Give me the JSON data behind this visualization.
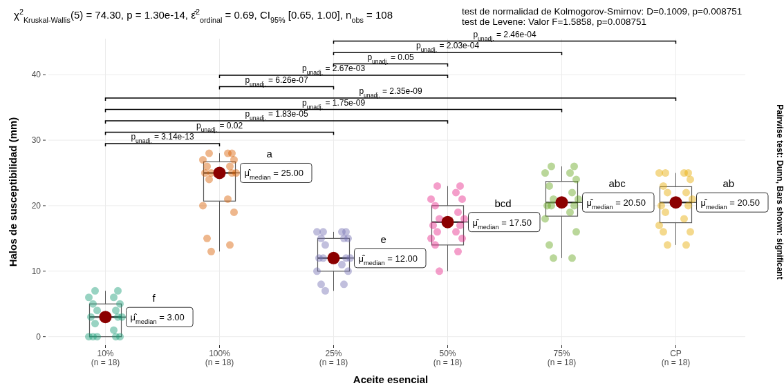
{
  "chart_data": {
    "type": "box",
    "title": "χ$^{2}$$_{Kruskal-Wallis}$(5) = 74.30, p = 1.30e-14, ε̂$^{2}$$_{ordinal}$ = 0.69, CI$_{95%}$ [0.65, 1.00], n$_{obs}$ = 108",
    "subtitle": "test de normalidad de Kolmogorov-Smirnov: D=0.1009, p=0.008751\ntest de Levene: Valor F=1.5858, p=0.008751",
    "xlabel": "Aceite esencial",
    "ylabel": "Halos de susceptibilidad (mm)",
    "categories": [
      "10%\n(n = 18)",
      "100%\n(n = 18)",
      "25%\n(n = 18)",
      "50%\n(n = 18)",
      "75%\n(n = 18)",
      "CP\n(n = 18)"
    ],
    "ylim": [
      -1.3,
      45.5
    ],
    "yticks": [
      0,
      10,
      20,
      30,
      40
    ],
    "grid": true,
    "color": "#595959",
    "boxes": [
      {
        "low": 0,
        "q1": 0,
        "median": 3,
        "q3": 5,
        "high": 7
      },
      {
        "low": 13,
        "q1": 20.7,
        "median": 25,
        "q3": 26.7,
        "high": 28
      },
      {
        "low": 7,
        "q1": 10,
        "median": 12,
        "q3": 15,
        "high": 16
      },
      {
        "low": 10,
        "q1": 14,
        "median": 17.5,
        "q3": 20,
        "high": 23
      },
      {
        "low": 12,
        "q1": 18.4,
        "median": 20.5,
        "q3": 23.7,
        "high": 26
      },
      {
        "low": 14,
        "q1": 17.4,
        "median": 20.5,
        "q3": 22.9,
        "high": 25
      }
    ],
    "series": [
      {
        "type": "scatter",
        "color": "#1b9e77",
        "x": [
          "10%\n(n = 18)",
          "10%\n(n = 18)",
          "10%\n(n = 18)",
          "10%\n(n = 18)",
          "10%\n(n = 18)",
          "10%\n(n = 18)",
          "10%\n(n = 18)",
          "10%\n(n = 18)",
          "10%\n(n = 18)",
          "10%\n(n = 18)",
          "10%\n(n = 18)",
          "10%\n(n = 18)",
          "10%\n(n = 18)",
          "10%\n(n = 18)",
          "10%\n(n = 18)",
          "10%\n(n = 18)",
          "10%\n(n = 18)",
          "10%\n(n = 18)"
        ],
        "values": [
          0,
          0,
          0,
          0,
          0,
          1,
          2,
          3,
          3,
          3,
          4,
          4,
          5,
          5,
          6,
          6,
          7,
          7
        ]
      },
      {
        "type": "scatter",
        "color": "#d95f02",
        "x": [
          "100%\n(n = 18)",
          "100%\n(n = 18)",
          "100%\n(n = 18)",
          "100%\n(n = 18)",
          "100%\n(n = 18)",
          "100%\n(n = 18)",
          "100%\n(n = 18)",
          "100%\n(n = 18)",
          "100%\n(n = 18)",
          "100%\n(n = 18)",
          "100%\n(n = 18)",
          "100%\n(n = 18)",
          "100%\n(n = 18)",
          "100%\n(n = 18)",
          "100%\n(n = 18)",
          "100%\n(n = 18)",
          "100%\n(n = 18)",
          "100%\n(n = 18)"
        ],
        "values": [
          13,
          14,
          15,
          19,
          20,
          21,
          24,
          25,
          25,
          25,
          25,
          26,
          26,
          27,
          27,
          28,
          28,
          28
        ]
      },
      {
        "type": "scatter",
        "color": "#7570b3",
        "x": [
          "25%\n(n = 18)",
          "25%\n(n = 18)",
          "25%\n(n = 18)",
          "25%\n(n = 18)",
          "25%\n(n = 18)",
          "25%\n(n = 18)",
          "25%\n(n = 18)",
          "25%\n(n = 18)",
          "25%\n(n = 18)",
          "25%\n(n = 18)",
          "25%\n(n = 18)",
          "25%\n(n = 18)",
          "25%\n(n = 18)",
          "25%\n(n = 18)",
          "25%\n(n = 18)",
          "25%\n(n = 18)",
          "25%\n(n = 18)",
          "25%\n(n = 18)"
        ],
        "values": [
          7,
          8,
          8,
          10,
          10,
          11,
          12,
          12,
          12,
          12,
          14,
          15,
          15,
          15,
          16,
          16,
          16,
          16
        ]
      },
      {
        "type": "scatter",
        "color": "#e7298a",
        "x": [
          "50%\n(n = 18)",
          "50%\n(n = 18)",
          "50%\n(n = 18)",
          "50%\n(n = 18)",
          "50%\n(n = 18)",
          "50%\n(n = 18)",
          "50%\n(n = 18)",
          "50%\n(n = 18)",
          "50%\n(n = 18)",
          "50%\n(n = 18)",
          "50%\n(n = 18)",
          "50%\n(n = 18)",
          "50%\n(n = 18)",
          "50%\n(n = 18)",
          "50%\n(n = 18)",
          "50%\n(n = 18)",
          "50%\n(n = 18)",
          "50%\n(n = 18)"
        ],
        "values": [
          10,
          13,
          14,
          15,
          15,
          16,
          16,
          17,
          17,
          18,
          18,
          19,
          20,
          21,
          21,
          22,
          23,
          23
        ]
      },
      {
        "type": "scatter",
        "color": "#66a61e",
        "x": [
          "75%\n(n = 18)",
          "75%\n(n = 18)",
          "75%\n(n = 18)",
          "75%\n(n = 18)",
          "75%\n(n = 18)",
          "75%\n(n = 18)",
          "75%\n(n = 18)",
          "75%\n(n = 18)",
          "75%\n(n = 18)",
          "75%\n(n = 18)",
          "75%\n(n = 18)",
          "75%\n(n = 18)",
          "75%\n(n = 18)",
          "75%\n(n = 18)",
          "75%\n(n = 18)",
          "75%\n(n = 18)",
          "75%\n(n = 18)",
          "75%\n(n = 18)"
        ],
        "values": [
          12,
          12,
          14,
          16,
          18,
          19,
          20,
          20,
          20,
          21,
          21,
          22,
          23,
          24,
          25,
          25,
          26,
          26
        ]
      },
      {
        "type": "scatter",
        "color": "#e6ab02",
        "x": [
          "CP\n(n = 18)",
          "CP\n(n = 18)",
          "CP\n(n = 18)",
          "CP\n(n = 18)",
          "CP\n(n = 18)",
          "CP\n(n = 18)",
          "CP\n(n = 18)",
          "CP\n(n = 18)",
          "CP\n(n = 18)",
          "CP\n(n = 18)",
          "CP\n(n = 18)",
          "CP\n(n = 18)",
          "CP\n(n = 18)",
          "CP\n(n = 18)",
          "CP\n(n = 18)",
          "CP\n(n = 18)",
          "CP\n(n = 18)",
          "CP\n(n = 18)"
        ],
        "values": [
          14,
          14,
          16,
          16,
          17,
          18,
          19,
          20,
          20,
          21,
          22,
          22,
          23,
          24,
          25,
          25,
          25,
          25
        ]
      },
      {
        "type": "scatter",
        "color": "#8b0000",
        "x": [
          "10%\n(n = 18)",
          "100%\n(n = 18)",
          "25%\n(n = 18)",
          "50%\n(n = 18)",
          "75%\n(n = 18)",
          "CP\n(n = 18)"
        ],
        "values": [
          3,
          25,
          12,
          17.5,
          20.5,
          20.5
        ]
      }
    ],
    "annotations": [
      "Pairwise test: Dunn, Bars shown: significant",
      "p$_{unadj.}$ = 3.14e-13",
      "p$_{unadj.}$ = 0.02",
      "p$_{unadj.}$ = 1.83e-05",
      "p$_{unadj.}$ = 1.75e-09",
      "p$_{unadj.}$ = 2.35e-09",
      "p$_{unadj.}$ = 6.26e-07",
      "p$_{unadj.}$ = 2.67e-03",
      "p$_{unadj.}$ = 0.05",
      "p$_{unadj.}$ = 2.03e-04",
      "p$_{unadj.}$ = 2.46e-04",
      {
        "text": "μ̂$_{median}$ = 3.00",
        "x": "10%\n(n = 18)",
        "y": 3
      },
      {
        "text": "μ̂$_{median}$ = 25.00",
        "x": "100%\n(n = 18)",
        "y": 25
      },
      {
        "text": "μ̂$_{median}$ = 12.00",
        "x": "25%\n(n = 18)",
        "y": 12
      },
      {
        "text": "μ̂$_{median}$ = 17.50",
        "x": "50%\n(n = 18)",
        "y": 17.5
      },
      {
        "text": "μ̂$_{median}$ = 20.50",
        "x": "75%\n(n = 18)",
        "y": 20.5
      },
      {
        "text": "μ̂$_{median}$ = 20.50",
        "x": "CP\n(n = 18)",
        "y": 20.5
      },
      "f",
      "a",
      "e",
      "bcd",
      "abc",
      "ab"
    ]
  }
}
